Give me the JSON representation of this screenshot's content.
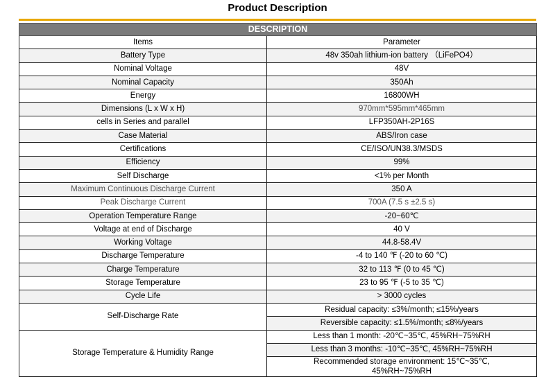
{
  "title": "Product Description",
  "banner": "DESCRIPTION",
  "header": {
    "items": "Items",
    "parameter": "Parameter"
  },
  "rows": [
    {
      "item": "Battery Type",
      "value": "48v 350ah lithium-ion battery （LiFePO4）"
    },
    {
      "item": "Nominal Voltage",
      "value": "48V"
    },
    {
      "item": "Nominal Capacity",
      "value": "350Ah"
    },
    {
      "item": "Energy",
      "value": "16800WH"
    },
    {
      "item": "Dimensions (L x W x H)",
      "value": "970mm*595mm*465mm"
    },
    {
      "item": "cells in Series and parallel",
      "value": "LFP350AH-2P16S"
    },
    {
      "item": "Case Material",
      "value": "ABS/Iron case"
    },
    {
      "item": "Certifications",
      "value": "CE/ISO/UN38.3/MSDS"
    },
    {
      "item": "Efficiency",
      "value": "99%"
    },
    {
      "item": "Self Discharge",
      "value": "<1% per Month"
    },
    {
      "item": "Maximum Continuous Discharge Current",
      "value": "350 A"
    },
    {
      "item": "Peak Discharge Current",
      "value": "700A (7.5 s ±2.5 s)"
    },
    {
      "item": "Operation Temperature Range",
      "value": "-20~60℃"
    },
    {
      "item": "Voltage at end of Discharge",
      "value": "40 V"
    },
    {
      "item": "Working Voltage",
      "value": "44.8-58.4V"
    },
    {
      "item": "Discharge Temperature",
      "value": "-4 to 140 ℉ (-20 to 60 ℃)"
    },
    {
      "item": "Charge Temperature",
      "value": "32 to 113 ℉ (0 to 45 ℃)"
    },
    {
      "item": "Storage Temperature",
      "value": "23 to 95 ℉ (-5 to 35 ℃)"
    },
    {
      "item": "Cycle Life",
      "value": "> 3000 cycles"
    }
  ],
  "self_discharge_rate": {
    "item": "Self-Discharge Rate",
    "values": [
      "Residual capacity: ≤3%/month; ≤15%/years",
      "Reversible capacity: ≤1.5%/month; ≤8%/years"
    ]
  },
  "storage_range": {
    "item": "Storage Temperature & Humidity Range",
    "values": [
      "Less than 1 month: -20℃~35℃, 45%RH~75%RH",
      "Less than 3 months: -10℃~35℃, 45%RH~75%RH",
      "Recommended storage environment: 15℃~35℃, 45%RH~75%RH"
    ]
  }
}
